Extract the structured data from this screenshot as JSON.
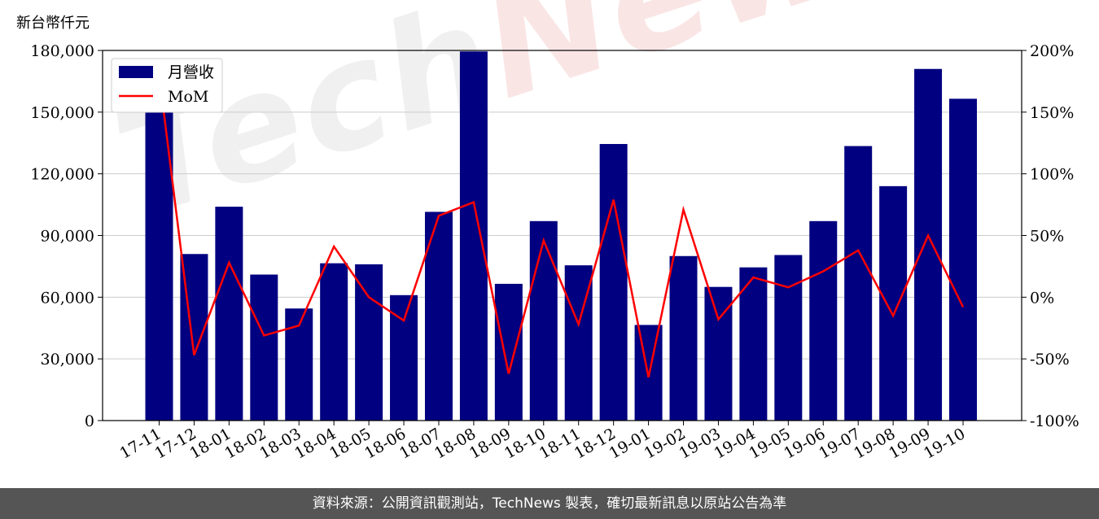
{
  "unit_label": "新台幣仟元",
  "footer_text": "資料來源：公開資訊觀測站，TechNews 製表，確切最新訊息以原站公告為準",
  "watermark": {
    "part1": "Tech",
    "part2": "News"
  },
  "colors": {
    "bar": "#000080",
    "line": "#ff0000",
    "grid": "#cccccc",
    "footer_bg": "#555555"
  },
  "chart_data": {
    "type": "bar",
    "categories": [
      "17-11",
      "17-12",
      "18-01",
      "18-02",
      "18-03",
      "18-04",
      "18-05",
      "18-06",
      "18-07",
      "18-08",
      "18-09",
      "18-10",
      "18-11",
      "18-12",
      "19-01",
      "19-02",
      "19-03",
      "19-04",
      "19-05",
      "19-06",
      "19-07",
      "19-08",
      "19-09",
      "19-10"
    ],
    "series": [
      {
        "name": "月營收",
        "type": "bar",
        "axis": "left",
        "values": [
          154000,
          81000,
          104000,
          71000,
          54500,
          76500,
          76000,
          61000,
          101500,
          179500,
          66500,
          97000,
          75500,
          134500,
          46500,
          80000,
          65000,
          74500,
          80500,
          97000,
          133500,
          114000,
          171000,
          156500
        ]
      },
      {
        "name": "MoM",
        "type": "line",
        "axis": "right",
        "values": [
          180,
          -47,
          28,
          -31,
          -23,
          41,
          0,
          -19,
          66,
          77,
          -62,
          46,
          -22,
          79,
          -65,
          71,
          -18,
          16,
          8,
          21,
          38,
          -15,
          50,
          -8
        ]
      }
    ],
    "y_left": {
      "min": 0,
      "max": 180000,
      "ticks": [
        0,
        30000,
        60000,
        90000,
        120000,
        150000,
        180000
      ],
      "tick_labels": [
        "0",
        "30,000",
        "60,000",
        "90,000",
        "120,000",
        "150,000",
        "180,000"
      ]
    },
    "y_right": {
      "min": -100,
      "max": 200,
      "ticks": [
        -100,
        -50,
        0,
        50,
        100,
        150,
        200
      ],
      "tick_labels": [
        "-100%",
        "-50%",
        "0%",
        "50%",
        "100%",
        "150%",
        "200%"
      ]
    },
    "grid": true,
    "legend": "top-left"
  }
}
